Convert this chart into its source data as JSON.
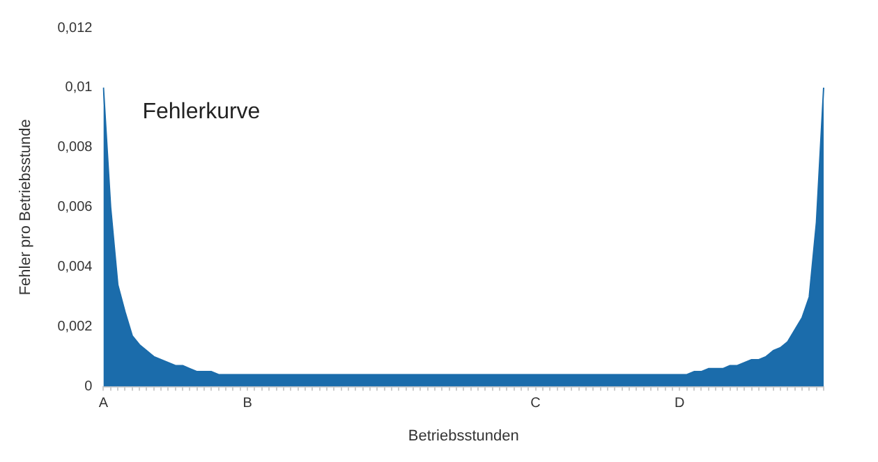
{
  "chart_data": {
    "type": "area",
    "title": "Fehlerkurve",
    "xlabel": "Betriebsstunden",
    "ylabel": "Fehler pro Betriebsstunde",
    "categories": [
      "A",
      null,
      null,
      null,
      null,
      null,
      null,
      null,
      null,
      null,
      null,
      null,
      null,
      null,
      null,
      null,
      null,
      null,
      null,
      null,
      "B",
      null,
      null,
      null,
      null,
      null,
      null,
      null,
      null,
      null,
      null,
      null,
      null,
      null,
      null,
      null,
      null,
      null,
      null,
      null,
      null,
      null,
      null,
      null,
      null,
      null,
      null,
      null,
      null,
      null,
      null,
      null,
      null,
      null,
      null,
      null,
      null,
      null,
      null,
      null,
      "C",
      null,
      null,
      null,
      null,
      null,
      null,
      null,
      null,
      null,
      null,
      null,
      null,
      null,
      null,
      null,
      null,
      null,
      null,
      null,
      "D",
      null,
      null,
      null,
      null,
      null,
      null,
      null,
      null,
      null,
      null,
      null,
      null,
      null,
      null,
      null,
      null,
      null,
      null,
      null,
      null
    ],
    "series": [
      {
        "color": "#1b6cab",
        "values": [
          0.01,
          0.006,
          0.0034,
          0.0025,
          0.0017,
          0.0014,
          0.0012,
          0.001,
          0.0009,
          0.0008,
          0.0007,
          0.0007,
          0.0006,
          0.0005,
          0.0005,
          0.0005,
          0.0004,
          0.0004,
          0.0004,
          0.0004,
          0.0004,
          0.0004,
          0.0004,
          0.0004,
          0.0004,
          0.0004,
          0.0004,
          0.0004,
          0.0004,
          0.0004,
          0.0004,
          0.0004,
          0.0004,
          0.0004,
          0.0004,
          0.0004,
          0.0004,
          0.0004,
          0.0004,
          0.0004,
          0.0004,
          0.0004,
          0.0004,
          0.0004,
          0.0004,
          0.0004,
          0.0004,
          0.0004,
          0.0004,
          0.0004,
          0.0004,
          0.0004,
          0.0004,
          0.0004,
          0.0004,
          0.0004,
          0.0004,
          0.0004,
          0.0004,
          0.0004,
          0.0004,
          0.0004,
          0.0004,
          0.0004,
          0.0004,
          0.0004,
          0.0004,
          0.0004,
          0.0004,
          0.0004,
          0.0004,
          0.0004,
          0.0004,
          0.0004,
          0.0004,
          0.0004,
          0.0004,
          0.0004,
          0.0004,
          0.0004,
          0.0004,
          0.0004,
          0.0005,
          0.0005,
          0.0006,
          0.0006,
          0.0006,
          0.0007,
          0.0007,
          0.0008,
          0.0009,
          0.0009,
          0.001,
          0.0012,
          0.0013,
          0.0015,
          0.0019,
          0.0023,
          0.003,
          0.0055,
          0.01
        ]
      }
    ],
    "ylim": [
      0,
      0.012
    ],
    "yticks": [
      0,
      {
        "value": 0.002,
        "label": "0,002"
      },
      {
        "value": 0.004,
        "label": "0,004"
      },
      {
        "value": 0.006,
        "label": "0,006"
      },
      {
        "value": 0.008,
        "label": "0,008"
      },
      {
        "value": 0.01,
        "label": "0,01"
      },
      {
        "value": 0.012,
        "label": "0,012"
      }
    ],
    "grid": false,
    "legend": false,
    "marker": "none"
  }
}
